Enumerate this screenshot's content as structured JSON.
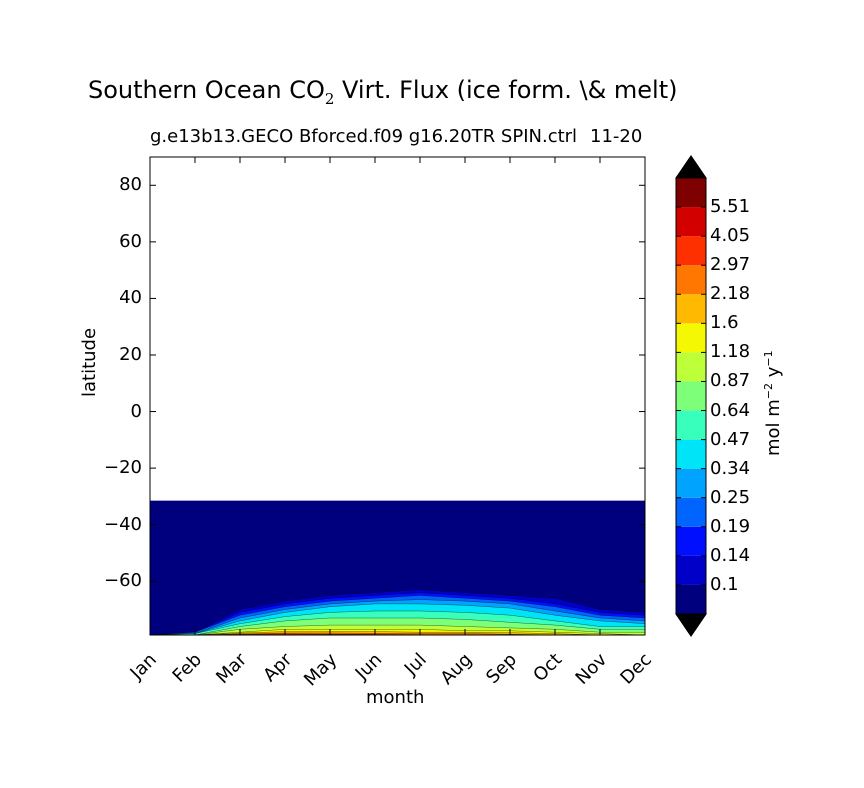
{
  "chart_data": {
    "type": "contourf",
    "title": "Southern Ocean CO",
    "title_sub": "2",
    "title_rest": " Virt. Flux (ice form. \\& melt)",
    "subtitle": "g.e13b13.GECO Bforced.f09 g16.20TR SPIN.ctrl",
    "subtitle_overlap": "11-20",
    "xlabel": "month",
    "ylabel": "latitude",
    "x_categories": [
      "Jan",
      "Feb",
      "Mar",
      "Apr",
      "May",
      "Jun",
      "Jul",
      "Aug",
      "Sep",
      "Oct",
      "Nov",
      "Dec"
    ],
    "y_ticks": [
      "80",
      "60",
      "40",
      "20",
      "0",
      "−20",
      "−40",
      "−60"
    ],
    "ylim": [
      -79,
      90
    ],
    "ocean_extent_lat": -31.5,
    "colorbar": {
      "label_base": "mol m",
      "label_exp1": "−2",
      "label_mid": " y",
      "label_exp2": "−1",
      "levels": [
        "0.1",
        "0.14",
        "0.19",
        "0.25",
        "0.34",
        "0.47",
        "0.64",
        "0.87",
        "1.18",
        "1.6",
        "2.18",
        "2.97",
        "4.05",
        "5.51"
      ],
      "colors": [
        "#00007f",
        "#0000c8",
        "#0010ff",
        "#0064ff",
        "#00a4ff",
        "#00e4f7",
        "#39ffbd",
        "#7dff7a",
        "#bdff39",
        "#f4f802",
        "#ffb900",
        "#ff7700",
        "#ff3000",
        "#d30000",
        "#7f0000"
      ],
      "extend": "both"
    },
    "contour_bands": [
      {
        "level": "0.1",
        "north_lat": [
          -79,
          -78,
          -70,
          -67,
          -65,
          -64,
          -63,
          -64,
          -65,
          -66,
          -70,
          -71
        ]
      },
      {
        "level": "0.14",
        "north_lat": [
          -79,
          -78,
          -71,
          -68,
          -66,
          -65,
          -64,
          -65,
          -66,
          -68,
          -71,
          -72
        ]
      },
      {
        "level": "0.19",
        "north_lat": [
          -79,
          -78,
          -72,
          -69,
          -67,
          -66,
          -65,
          -66,
          -67,
          -69,
          -72,
          -73
        ]
      },
      {
        "level": "0.25",
        "north_lat": [
          -79,
          -78.5,
          -73,
          -70,
          -68,
          -67,
          -66.5,
          -67,
          -68,
          -70.5,
          -73,
          -74
        ]
      },
      {
        "level": "0.34",
        "north_lat": [
          -79,
          -78.5,
          -74,
          -71,
          -69,
          -68,
          -68,
          -68.5,
          -69.5,
          -72,
          -74,
          -75
        ]
      },
      {
        "level": "0.47",
        "north_lat": [
          -79,
          -78.5,
          -75,
          -72.5,
          -71,
          -70.5,
          -70.5,
          -71,
          -72,
          -74,
          -76,
          -76
        ]
      },
      {
        "level": "0.64",
        "north_lat": [
          -79,
          -79,
          -76,
          -74,
          -73,
          -73,
          -73,
          -73.5,
          -74.5,
          -75.5,
          -77,
          -77
        ]
      },
      {
        "level": "0.87",
        "north_lat": [
          -79,
          -79,
          -77,
          -76,
          -75.5,
          -75.5,
          -75.5,
          -76,
          -76.5,
          -77,
          -78,
          -78
        ]
      },
      {
        "level": "1.18",
        "north_lat": [
          -79,
          -79,
          -78,
          -77,
          -77,
          -77,
          -77,
          -77.5,
          -77.5,
          -78,
          -78.5,
          -79
        ]
      },
      {
        "level": "1.6",
        "north_lat": [
          -79,
          -79,
          -78.3,
          -77.8,
          -77.8,
          -77.8,
          -78,
          -78,
          -78.2,
          -78.5,
          -79,
          -79
        ]
      },
      {
        "level": "2.18",
        "north_lat": [
          -79,
          -79,
          -78.6,
          -78.3,
          -78.3,
          -78.4,
          -78.5,
          -78.5,
          -78.7,
          -79,
          -79,
          -79
        ]
      },
      {
        "level": "2.97",
        "north_lat": [
          -79,
          -79,
          -78.8,
          -78.6,
          -78.7,
          -78.8,
          -78.9,
          -79,
          -79,
          -79,
          -79,
          -79
        ]
      }
    ]
  }
}
